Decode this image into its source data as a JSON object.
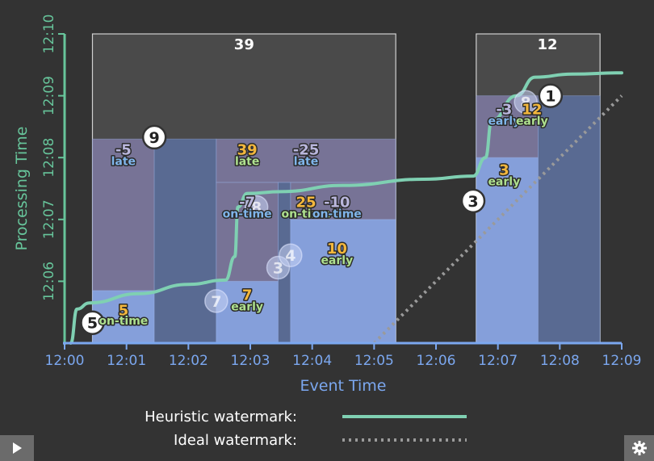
{
  "colors": {
    "background": "#333333",
    "heuristic": "#7fd0b2",
    "ideal": "#9a9a9a",
    "axis_x": "#7ba7ef",
    "axis_y": "#67c59b",
    "pane": "#4a4a4a",
    "pane_border": "#d0d0d0",
    "bar_light": "#8aa6e6",
    "bar_dark": "#5a6b96",
    "bar_purple": "#8782b0",
    "num_gold": "#f3b73d",
    "num_purple": "#b9b6dc",
    "num_white": "#ffffff",
    "word_green": "#aee08e",
    "word_blue": "#7fb5ea"
  },
  "chart_data": {
    "type": "area",
    "xlabel": "Event Time",
    "ylabel": "Processing Time",
    "x_ticks": [
      "12:00",
      "12:01",
      "12:02",
      "12:03",
      "12:04",
      "12:05",
      "12:06",
      "12:07",
      "12:08",
      "12:09"
    ],
    "y_ticks": [
      "12:06",
      "12:07",
      "12:08",
      "12:09",
      "12:10"
    ],
    "xlim": [
      0,
      9
    ],
    "ylim": [
      5,
      10
    ],
    "series": [
      {
        "name": "Heuristic watermark",
        "style": "solid",
        "points": [
          [
            0.1,
            5
          ],
          [
            0.2,
            5.55
          ],
          [
            0.4,
            5.65
          ],
          [
            1.2,
            5.8
          ],
          [
            2.0,
            5.95
          ],
          [
            2.6,
            6.02
          ],
          [
            2.75,
            6.4
          ],
          [
            2.8,
            7.2
          ],
          [
            2.95,
            7.42
          ],
          [
            3.5,
            7.45
          ],
          [
            4.5,
            7.55
          ],
          [
            5.8,
            7.65
          ],
          [
            6.6,
            7.7
          ],
          [
            6.8,
            8.0
          ],
          [
            6.9,
            8.6
          ],
          [
            7.3,
            9.0
          ],
          [
            7.6,
            9.3
          ],
          [
            8.2,
            9.35
          ],
          [
            9.0,
            9.37
          ]
        ]
      },
      {
        "name": "Ideal watermark",
        "style": "dotted",
        "points": [
          [
            5.0,
            5.0
          ],
          [
            9.0,
            9.0
          ]
        ]
      }
    ],
    "panes": [
      {
        "x0": 0.45,
        "x1": 5.35,
        "total": "39"
      },
      {
        "x0": 6.65,
        "x1": 8.65,
        "total": "12"
      }
    ],
    "bars": [
      {
        "x0": 0.45,
        "x1": 1.45,
        "y0": 5.0,
        "y1": 5.85,
        "tone": "light"
      },
      {
        "x0": 0.45,
        "x1": 1.45,
        "y0": 5.85,
        "y1": 8.3,
        "tone": "purple"
      },
      {
        "x0": 1.45,
        "x1": 2.45,
        "y0": 5.0,
        "y1": 8.3,
        "tone": "dark"
      },
      {
        "x0": 2.45,
        "x1": 3.45,
        "y0": 5.0,
        "y1": 6.0,
        "tone": "light"
      },
      {
        "x0": 2.45,
        "x1": 3.45,
        "y0": 6.0,
        "y1": 7.6,
        "tone": "purple"
      },
      {
        "x0": 3.45,
        "x1": 3.65,
        "y0": 5.0,
        "y1": 7.6,
        "tone": "dark"
      },
      {
        "x0": 3.65,
        "x1": 5.35,
        "y0": 5.0,
        "y1": 7.0,
        "tone": "light"
      },
      {
        "x0": 3.65,
        "x1": 5.35,
        "y0": 7.0,
        "y1": 7.6,
        "tone": "purple"
      },
      {
        "x0": 2.45,
        "x1": 5.35,
        "y0": 7.6,
        "y1": 8.3,
        "tone": "purple"
      },
      {
        "x0": 6.65,
        "x1": 7.65,
        "y0": 5.0,
        "y1": 8.0,
        "tone": "light"
      },
      {
        "x0": 6.65,
        "x1": 7.65,
        "y0": 8.0,
        "y1": 9.0,
        "tone": "purple"
      },
      {
        "x0": 7.65,
        "x1": 8.65,
        "y0": 5.0,
        "y1": 9.0,
        "tone": "dark"
      }
    ],
    "events": [
      {
        "label": "5",
        "x": 0.45,
        "y": 5.33,
        "style": "solid"
      },
      {
        "label": "9",
        "x": 1.45,
        "y": 8.33,
        "style": "solid"
      },
      {
        "label": "7",
        "x": 2.45,
        "y": 5.68,
        "style": "faded"
      },
      {
        "label": "3",
        "x": 3.45,
        "y": 6.22,
        "style": "faded"
      },
      {
        "label": "4",
        "x": 3.65,
        "y": 6.42,
        "style": "faded"
      },
      {
        "label": "8",
        "x": 3.1,
        "y": 7.2,
        "style": "faded"
      },
      {
        "label": "3",
        "x": 6.6,
        "y": 7.3,
        "style": "solid"
      },
      {
        "label": "8",
        "x": 7.45,
        "y": 8.9,
        "style": "faded"
      },
      {
        "label": "1",
        "x": 7.85,
        "y": 9.0,
        "style": "solid"
      }
    ],
    "annotations": [
      {
        "num": "39",
        "num_x": 2.9,
        "num_y": 9.75,
        "color": "white"
      },
      {
        "num": "12",
        "num_x": 7.8,
        "num_y": 9.75,
        "color": "white"
      },
      {
        "num": "5",
        "num_x": 0.95,
        "num_y": 5.45,
        "word": "on-time",
        "word_y": 5.3,
        "num_color": "gold",
        "word_color": "green"
      },
      {
        "num": "-5",
        "num_x": 0.95,
        "num_y": 8.05,
        "word": "late",
        "word_y": 7.88,
        "num_color": "purple",
        "word_color": "blue"
      },
      {
        "num": "39",
        "num_x": 2.95,
        "num_y": 8.05,
        "word": "late",
        "word_y": 7.88,
        "num_color": "gold",
        "word_color": "green"
      },
      {
        "num": "-25",
        "num_x": 3.9,
        "num_y": 8.05,
        "word": "late",
        "word_y": 7.88,
        "num_color": "purple",
        "word_color": "blue"
      },
      {
        "num": "-7",
        "num_x": 2.95,
        "num_y": 7.2,
        "word": "on-time",
        "word_y": 7.03,
        "num_color": "purple",
        "word_color": "blue"
      },
      {
        "num": "25",
        "num_x": 3.9,
        "num_y": 7.2,
        "word": "on-time",
        "word_y": 7.03,
        "num_color": "gold",
        "word_color": "green"
      },
      {
        "num": "-10",
        "num_x": 4.4,
        "num_y": 7.2,
        "word": "on-time",
        "word_y": 7.03,
        "num_color": "purple",
        "word_color": "blue"
      },
      {
        "num": "10",
        "num_x": 4.4,
        "num_y": 6.45,
        "word": "early",
        "word_y": 6.28,
        "num_color": "gold",
        "word_color": "green"
      },
      {
        "num": "7",
        "num_x": 2.95,
        "num_y": 5.7,
        "word": "early",
        "word_y": 5.53,
        "num_color": "gold",
        "word_color": "green"
      },
      {
        "num": "3",
        "num_x": 7.1,
        "num_y": 7.72,
        "word": "early",
        "word_y": 7.55,
        "num_color": "gold",
        "word_color": "green"
      },
      {
        "num": "-3",
        "num_x": 7.1,
        "num_y": 8.7,
        "word": "early",
        "word_y": 8.53,
        "num_color": "purple",
        "word_color": "blue"
      },
      {
        "num": "12",
        "num_x": 7.55,
        "num_y": 8.7,
        "word": "early",
        "word_y": 8.53,
        "num_color": "gold",
        "word_color": "green"
      }
    ],
    "legend": [
      {
        "label": "Heuristic watermark:",
        "style": "solid"
      },
      {
        "label": "Ideal watermark:",
        "style": "dotted"
      }
    ]
  },
  "controls": {
    "play_icon": "play-icon",
    "settings_icon": "gear-icon"
  }
}
